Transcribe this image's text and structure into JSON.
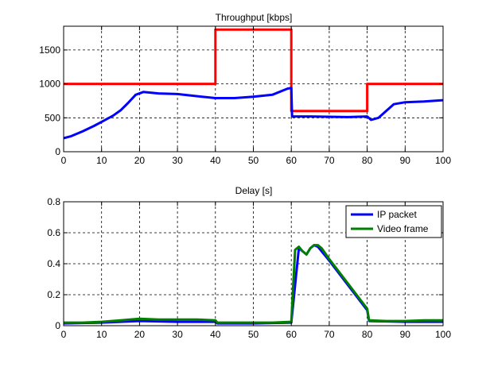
{
  "chart_data": [
    {
      "type": "line",
      "title": "Throughput [kbps]",
      "xlabel": "",
      "ylabel": "",
      "xlim": [
        0,
        100
      ],
      "ylim": [
        0,
        1850
      ],
      "xticks": [
        0,
        10,
        20,
        30,
        40,
        50,
        60,
        70,
        80,
        90,
        100
      ],
      "yticks": [
        0,
        500,
        1000,
        1500
      ],
      "grid": true,
      "series": [
        {
          "color": "#ff0000",
          "x": [
            0,
            40,
            40,
            60,
            60,
            80,
            80,
            100
          ],
          "y": [
            1000,
            1000,
            1800,
            1800,
            600,
            600,
            1000,
            1000
          ]
        },
        {
          "color": "#0000ff",
          "x": [
            0,
            2,
            5,
            8,
            10,
            13,
            15,
            17,
            19,
            21,
            25,
            30,
            35,
            40,
            45,
            50,
            55,
            59,
            60,
            60.2,
            65,
            70,
            75,
            80,
            81,
            83,
            85,
            87,
            90,
            95,
            100
          ],
          "y": [
            200,
            230,
            300,
            380,
            440,
            530,
            610,
            720,
            840,
            880,
            860,
            850,
            820,
            790,
            790,
            810,
            840,
            930,
            940,
            520,
            520,
            515,
            510,
            520,
            470,
            500,
            600,
            700,
            730,
            740,
            760
          ]
        }
      ]
    },
    {
      "type": "line",
      "title": "Delay [s]",
      "xlabel": "",
      "ylabel": "",
      "xlim": [
        0,
        100
      ],
      "ylim": [
        0,
        0.8
      ],
      "xticks": [
        0,
        10,
        20,
        30,
        40,
        50,
        60,
        70,
        80,
        90,
        100
      ],
      "yticks": [
        0,
        0.2,
        0.4,
        0.6,
        0.8
      ],
      "grid": true,
      "legend": "top-right",
      "series": [
        {
          "name": "IP packet",
          "color": "#0000ff",
          "x": [
            0,
            10,
            20,
            30,
            40,
            40.5,
            50,
            60,
            62,
            64,
            65,
            66,
            67,
            70,
            75,
            80,
            80.5,
            90,
            100
          ],
          "y": [
            0.015,
            0.02,
            0.03,
            0.025,
            0.025,
            0.015,
            0.015,
            0.02,
            0.5,
            0.46,
            0.5,
            0.52,
            0.51,
            0.42,
            0.26,
            0.1,
            0.03,
            0.025,
            0.025
          ]
        },
        {
          "name": "Video frame",
          "color": "#007f00",
          "x": [
            0,
            5,
            10,
            15,
            20,
            25,
            30,
            35,
            40,
            40.5,
            45,
            50,
            55,
            60,
            61,
            62,
            63,
            64,
            65,
            66,
            67,
            68,
            70,
            75,
            80,
            80.5,
            85,
            90,
            95,
            100
          ],
          "y": [
            0.02,
            0.02,
            0.025,
            0.035,
            0.045,
            0.04,
            0.04,
            0.04,
            0.035,
            0.02,
            0.02,
            0.02,
            0.02,
            0.025,
            0.49,
            0.51,
            0.48,
            0.46,
            0.5,
            0.52,
            0.52,
            0.5,
            0.43,
            0.27,
            0.11,
            0.035,
            0.03,
            0.03,
            0.035,
            0.035
          ]
        }
      ]
    }
  ]
}
